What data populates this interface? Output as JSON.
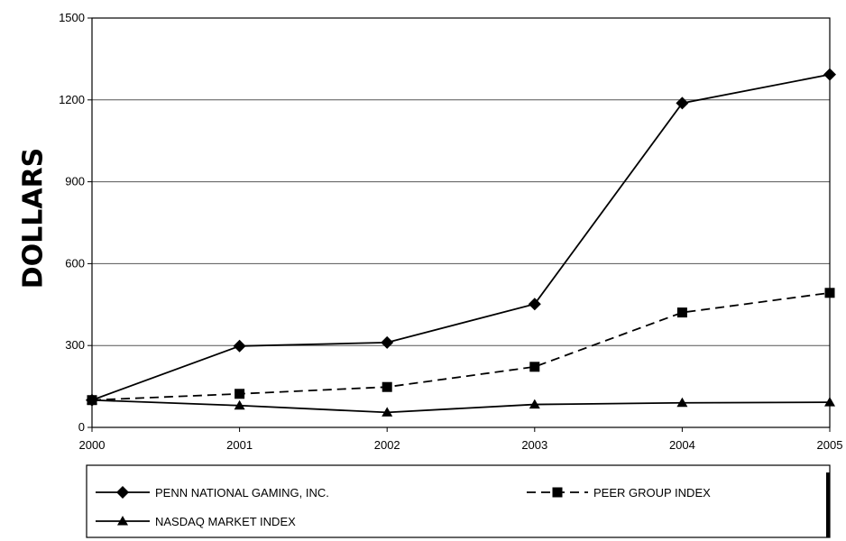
{
  "chart_data": {
    "type": "line",
    "title": "",
    "xlabel": "",
    "ylabel": "DOLLARS",
    "categories": [
      "2000",
      "2001",
      "2002",
      "2003",
      "2004",
      "2005"
    ],
    "yticks": [
      "0",
      "300",
      "600",
      "900",
      "1200",
      "1500"
    ],
    "ylim": [
      0,
      1500
    ],
    "grid": "horizontal",
    "legend_position": "bottom",
    "series": [
      {
        "name": "PENN NATIONAL GAMING, INC.",
        "marker": "diamond",
        "line": "solid",
        "color": "#000000",
        "values": [
          100,
          298,
          311,
          452,
          1188,
          1293
        ]
      },
      {
        "name": "PEER GROUP INDEX",
        "marker": "square",
        "line": "dashed",
        "color": "#000000",
        "values": [
          100,
          123,
          148,
          222,
          421,
          493
        ]
      },
      {
        "name": "NASDAQ MARKET INDEX",
        "marker": "triangle",
        "line": "solid",
        "color": "#000000",
        "values": [
          100,
          80,
          55,
          84,
          90,
          92
        ]
      }
    ]
  }
}
